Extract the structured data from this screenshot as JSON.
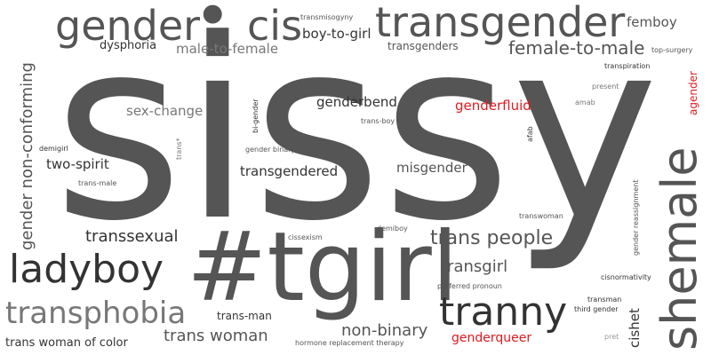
{
  "colors": {
    "dark": "#333333",
    "mid": "#555555",
    "light": "#777777",
    "faint": "#999999",
    "accent": "#e0191e"
  },
  "words": [
    {
      "text": "sissy",
      "tone": "mid"
    },
    {
      "text": "#tgirl",
      "tone": "mid"
    },
    {
      "text": "transgender",
      "tone": "mid"
    },
    {
      "text": "gender",
      "tone": "mid"
    },
    {
      "text": "cis",
      "tone": "mid"
    },
    {
      "text": "•",
      "tone": "mid"
    },
    {
      "text": "shemale",
      "tone": "mid"
    },
    {
      "text": "tranny",
      "tone": "dark"
    },
    {
      "text": "ladyboy",
      "tone": "dark"
    },
    {
      "text": "transphobia",
      "tone": "light"
    },
    {
      "text": "gender non-conforming",
      "tone": "mid"
    },
    {
      "text": "trans people",
      "tone": "mid"
    },
    {
      "text": "female-to-male",
      "tone": "mid"
    },
    {
      "text": "boy-to-girl",
      "tone": "dark"
    },
    {
      "text": "male-to-female",
      "tone": "light"
    },
    {
      "text": "femboy",
      "tone": "mid"
    },
    {
      "text": "dysphoria",
      "tone": "dark"
    },
    {
      "text": "transgenders",
      "tone": "mid"
    },
    {
      "text": "transmisogyny",
      "tone": "mid"
    },
    {
      "text": "top-surgery",
      "tone": "mid"
    },
    {
      "text": "transpiration",
      "tone": "dark"
    },
    {
      "text": "present",
      "tone": "light"
    },
    {
      "text": "amab",
      "tone": "light"
    },
    {
      "text": "agender",
      "tone": "accent"
    },
    {
      "text": "genderfluid",
      "tone": "accent"
    },
    {
      "text": "genderbend",
      "tone": "dark"
    },
    {
      "text": "sex-change",
      "tone": "light"
    },
    {
      "text": "trans-boy",
      "tone": "mid"
    },
    {
      "text": "bi-gender",
      "tone": "dark"
    },
    {
      "text": "gender binary",
      "tone": "mid"
    },
    {
      "text": "trans*",
      "tone": "light"
    },
    {
      "text": "demigirl",
      "tone": "dark"
    },
    {
      "text": "two-spirit",
      "tone": "dark"
    },
    {
      "text": "trans-male",
      "tone": "mid"
    },
    {
      "text": "transgendered",
      "tone": "dark"
    },
    {
      "text": "misgender",
      "tone": "mid"
    },
    {
      "text": "afab",
      "tone": "dark"
    },
    {
      "text": "gender reassignment",
      "tone": "mid"
    },
    {
      "text": "transwoman",
      "tone": "mid"
    },
    {
      "text": "cissexism",
      "tone": "mid"
    },
    {
      "text": "demiboy",
      "tone": "mid"
    },
    {
      "text": "transsexual",
      "tone": "dark"
    },
    {
      "text": "transgirl",
      "tone": "mid"
    },
    {
      "text": "preferred pronoun",
      "tone": "mid"
    },
    {
      "text": "cisnormativity",
      "tone": "dark"
    },
    {
      "text": "transman",
      "tone": "dark"
    },
    {
      "text": "third gender",
      "tone": "dark"
    },
    {
      "text": "cishet",
      "tone": "dark"
    },
    {
      "text": "trans-man",
      "tone": "dark"
    },
    {
      "text": "non-binary",
      "tone": "mid"
    },
    {
      "text": "trans woman",
      "tone": "mid"
    },
    {
      "text": "genderqueer",
      "tone": "accent"
    },
    {
      "text": "trans woman of color",
      "tone": "dark"
    },
    {
      "text": "hormone replacement therapy",
      "tone": "mid"
    },
    {
      "text": "pret",
      "tone": "faint"
    }
  ]
}
